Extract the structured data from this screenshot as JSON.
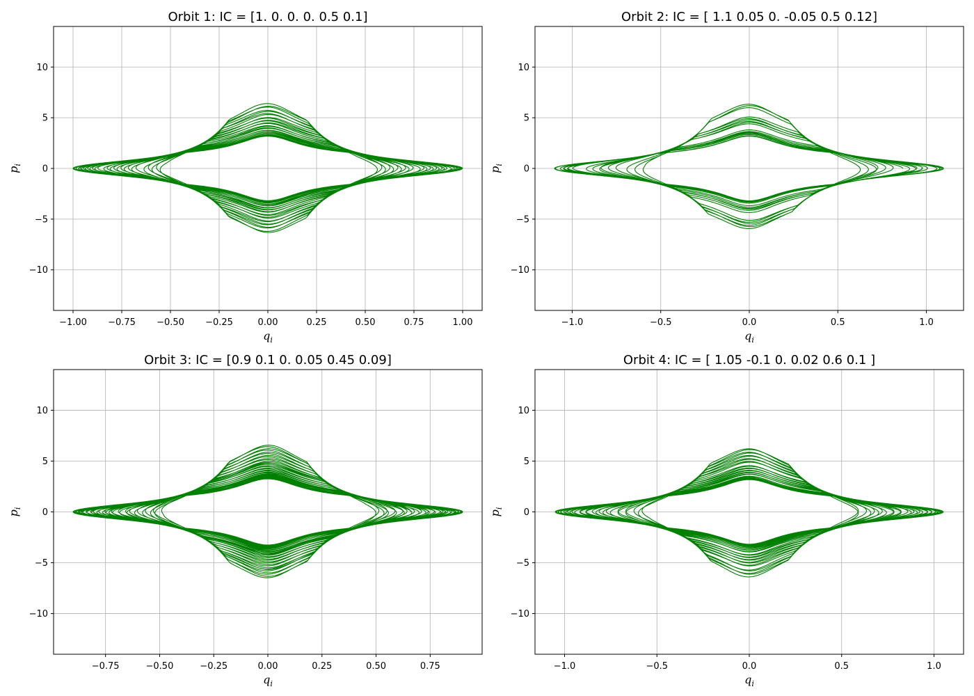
{
  "figure": {
    "line_color": "#008000",
    "grid_color": "#b0b0b0",
    "axis_color": "#000000",
    "background": "#ffffff"
  },
  "chart_data": [
    {
      "type": "line",
      "title": "Orbit 1: IC = [1.  0.  0.  0.  0.5 0.1]",
      "xlabel": "q",
      "xlabel_sub": "i",
      "ylabel": "p",
      "ylabel_sub": "i",
      "xlim": [
        -1.1,
        1.1
      ],
      "ylim": [
        -14,
        14
      ],
      "xticks": [
        -1.0,
        -0.75,
        -0.5,
        -0.25,
        0.0,
        0.25,
        0.5,
        0.75,
        1.0
      ],
      "xtick_labels": [
        "−1.00",
        "−0.75",
        "−0.50",
        "−0.25",
        "0.00",
        "0.25",
        "0.50",
        "0.75",
        "1.00"
      ],
      "yticks": [
        -10,
        -5,
        0,
        5,
        10
      ],
      "ytick_labels": [
        "−10",
        "−5",
        "0",
        "5",
        "10"
      ],
      "grid": true,
      "series_shape": {
        "q_max": 1.0,
        "p_max": 12.6,
        "loops": 30
      }
    },
    {
      "type": "line",
      "title": "Orbit 2: IC = [ 1.1   0.05  0.   -0.05  0.5   0.12]",
      "xlabel": "q",
      "xlabel_sub": "i",
      "ylabel": "p",
      "ylabel_sub": "i",
      "xlim": [
        -1.21,
        1.21
      ],
      "ylim": [
        -14,
        14
      ],
      "xticks": [
        -1.0,
        -0.5,
        0.0,
        0.5,
        1.0
      ],
      "xtick_labels": [
        "−1.0",
        "−0.5",
        "0.0",
        "0.5",
        "1.0"
      ],
      "yticks": [
        -10,
        -5,
        0,
        5,
        10
      ],
      "ytick_labels": [
        "−10",
        "−5",
        "0",
        "5",
        "10"
      ],
      "grid": true,
      "series_shape": {
        "q_max": 1.1,
        "p_max": 12.6,
        "loops": 18
      }
    },
    {
      "type": "line",
      "title": "Orbit 3: IC = [0.9  0.1  0.   0.05 0.45 0.09]",
      "xlabel": "q",
      "xlabel_sub": "i",
      "ylabel": "p",
      "ylabel_sub": "i",
      "xlim": [
        -0.99,
        0.99
      ],
      "ylim": [
        -14,
        14
      ],
      "xticks": [
        -0.75,
        -0.5,
        -0.25,
        0.0,
        0.25,
        0.5,
        0.75
      ],
      "xtick_labels": [
        "−0.75",
        "−0.50",
        "−0.25",
        "0.00",
        "0.25",
        "0.50",
        "0.75"
      ],
      "yticks": [
        -10,
        -5,
        0,
        5,
        10
      ],
      "ytick_labels": [
        "−10",
        "−5",
        "0",
        "5",
        "10"
      ],
      "grid": true,
      "series_shape": {
        "q_max": 0.9,
        "p_max": 12.9,
        "loops": 40
      }
    },
    {
      "type": "line",
      "title": "Orbit 4: IC = [ 1.05 -0.1   0.    0.02  0.6   0.1 ]",
      "xlabel": "q",
      "xlabel_sub": "i",
      "ylabel": "p",
      "ylabel_sub": "i",
      "xlim": [
        -1.16,
        1.16
      ],
      "ylim": [
        -14,
        14
      ],
      "xticks": [
        -1.0,
        -0.5,
        0.0,
        0.5,
        1.0
      ],
      "xtick_labels": [
        "−1.0",
        "−0.5",
        "0.0",
        "0.5",
        "1.0"
      ],
      "yticks": [
        -10,
        -5,
        0,
        5,
        10
      ],
      "ytick_labels": [
        "−10",
        "−5",
        "0",
        "5",
        "10"
      ],
      "grid": true,
      "series_shape": {
        "q_max": 1.05,
        "p_max": 12.6,
        "loops": 32
      }
    }
  ]
}
